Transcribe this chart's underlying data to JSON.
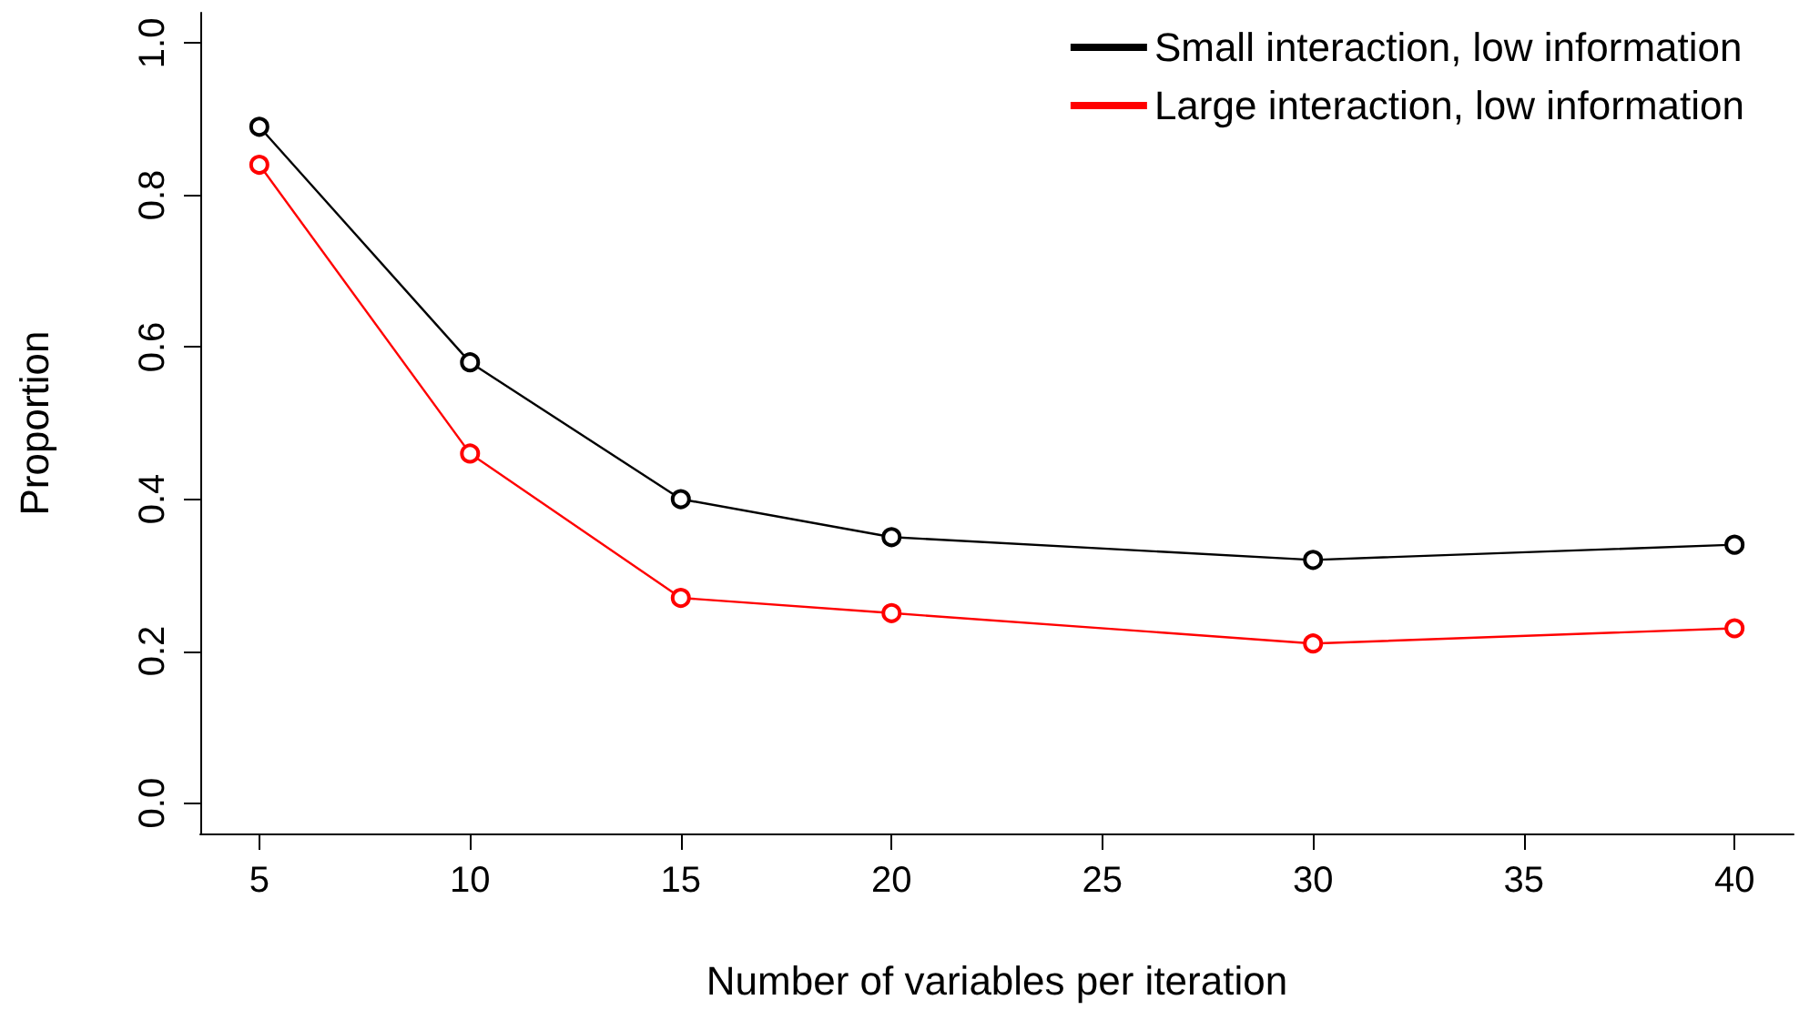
{
  "chart_data": {
    "type": "line",
    "xlabel": "Number of variables per iteration",
    "ylabel": "Proportion",
    "x": [
      5,
      10,
      15,
      20,
      30,
      40
    ],
    "series": [
      {
        "name": "Small interaction, low information",
        "color": "#000000",
        "values": [
          0.89,
          0.58,
          0.4,
          0.35,
          0.32,
          0.34
        ]
      },
      {
        "name": "Large interaction, low information",
        "color": "#ff0000",
        "values": [
          0.84,
          0.46,
          0.27,
          0.25,
          0.21,
          0.23
        ]
      }
    ],
    "xlim": [
      3.6,
      41.4
    ],
    "xticks": [
      5,
      10,
      15,
      20,
      25,
      30,
      35,
      40
    ],
    "ylim": [
      -0.04,
      1.04
    ],
    "yticks": [
      {
        "value": 0,
        "label": "0.0"
      },
      {
        "value": 0.2,
        "label": "0.2"
      },
      {
        "value": 0.4,
        "label": "0.4"
      },
      {
        "value": 0.6,
        "label": "0.6"
      },
      {
        "value": 0.8,
        "label": "0.8"
      },
      {
        "value": 1,
        "label": "1.0"
      }
    ],
    "grid": false,
    "legend": "top right",
    "marker": "circle",
    "line_style": "solid"
  }
}
